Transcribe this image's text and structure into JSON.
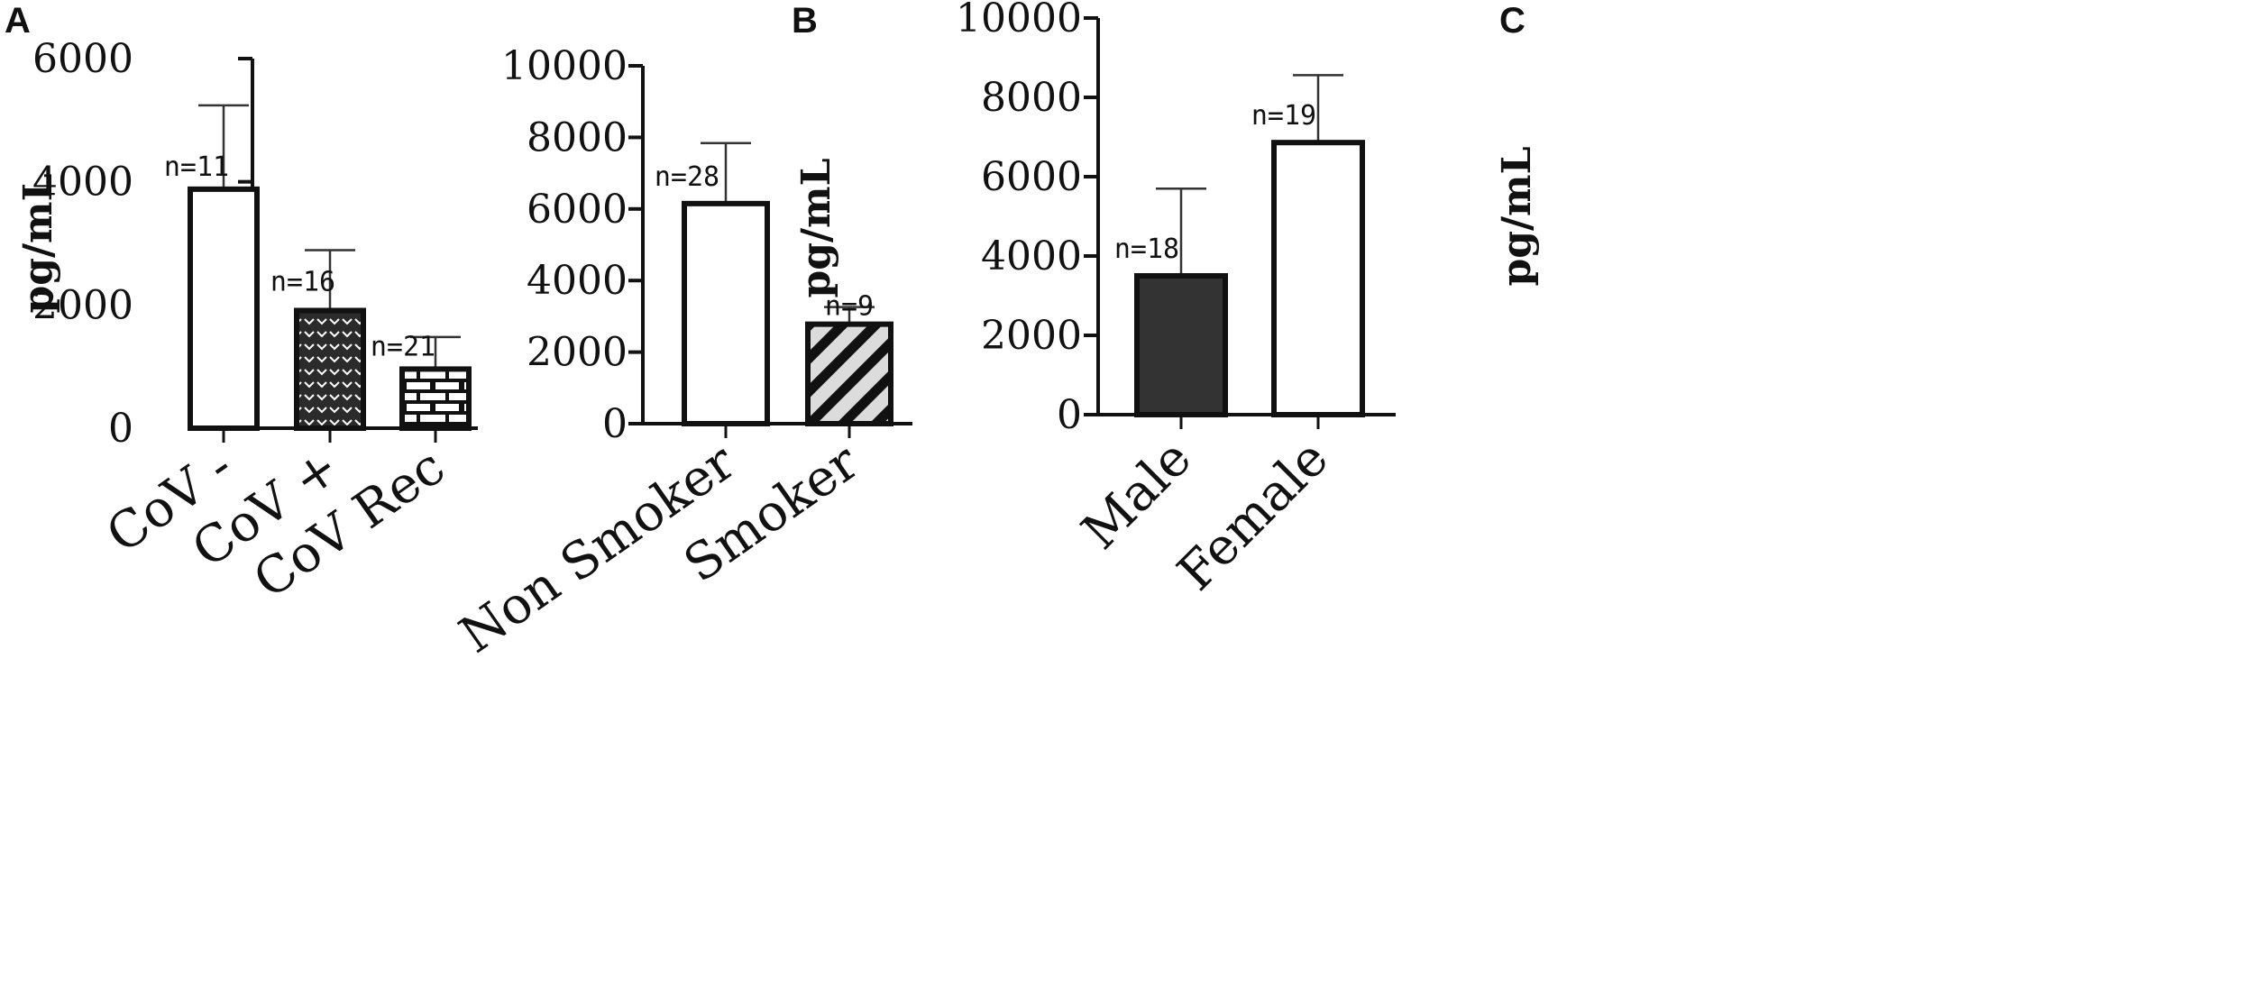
{
  "chart_data": [
    {
      "type": "bar",
      "panel": "A",
      "ylabel": "pg/mL",
      "ylim": [
        0,
        6000
      ],
      "yticks": [
        "0",
        "2000",
        "4000",
        "6000"
      ],
      "categories": [
        "CoV -",
        "CoV +",
        "CoV Rec"
      ],
      "values": [
        3880,
        1910,
        960
      ],
      "errors": [
        1360,
        980,
        520
      ],
      "n_labels": [
        "n=11",
        "n=16",
        "n=21"
      ],
      "patterns": [
        "white",
        "chevron",
        "brick"
      ]
    },
    {
      "type": "bar",
      "panel": "B",
      "ylabel": "pg/mL",
      "ylim": [
        0,
        10000
      ],
      "yticks": [
        "0",
        "2000",
        "4000",
        "6000",
        "8000",
        "10000"
      ],
      "categories": [
        "Non Smoker",
        "Smoker"
      ],
      "values": [
        6150,
        2780
      ],
      "errors": [
        1690,
        480
      ],
      "n_labels": [
        "n=28",
        "n=9"
      ],
      "patterns": [
        "white",
        "diagonal"
      ]
    },
    {
      "type": "bar",
      "panel": "C",
      "ylabel": "pg/mL",
      "ylim": [
        0,
        10000
      ],
      "yticks": [
        "0",
        "2000",
        "4000",
        "6000",
        "8000",
        "10000"
      ],
      "categories": [
        "Male",
        "Female"
      ],
      "values": [
        3500,
        6860
      ],
      "errors": [
        2200,
        1700
      ],
      "n_labels": [
        "n=18",
        "n=19"
      ],
      "patterns": [
        "dark",
        "white"
      ]
    }
  ]
}
